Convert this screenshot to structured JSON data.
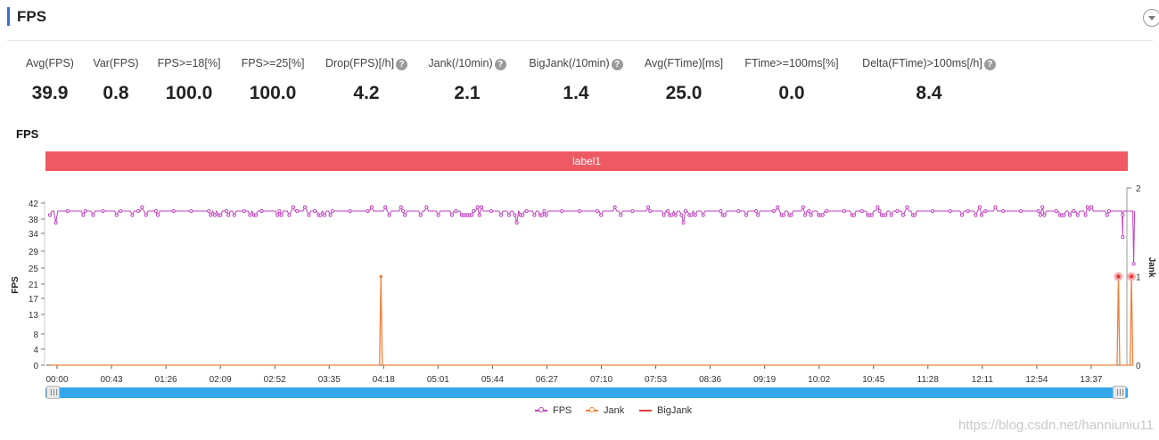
{
  "header": {
    "title": "FPS"
  },
  "metrics": [
    {
      "label": "Avg(FPS)",
      "value": "39.9",
      "help": false
    },
    {
      "label": "Var(FPS)",
      "value": "0.8",
      "help": false
    },
    {
      "label": "FPS>=18[%]",
      "value": "100.0",
      "help": false
    },
    {
      "label": "FPS>=25[%]",
      "value": "100.0",
      "help": false
    },
    {
      "label": "Drop(FPS)[/h]",
      "value": "4.2",
      "help": true
    },
    {
      "label": "Jank(/10min)",
      "value": "2.1",
      "help": true
    },
    {
      "label": "BigJank(/10min)",
      "value": "1.4",
      "help": true
    },
    {
      "label": "Avg(FTime)[ms]",
      "value": "25.0",
      "help": false
    },
    {
      "label": "FTime>=100ms[%]",
      "value": "0.0",
      "help": false
    },
    {
      "label": "Delta(FTime)>100ms[/h]",
      "value": "8.4",
      "help": true
    }
  ],
  "section": {
    "title": "FPS",
    "label_bar": "label1"
  },
  "chart_data": {
    "type": "line",
    "left_axis": {
      "label": "FPS",
      "ticks": [
        0,
        4,
        8,
        13,
        17,
        21,
        25,
        29,
        34,
        38,
        42
      ]
    },
    "right_axis": {
      "label": "Jank",
      "ticks": [
        0,
        1,
        2
      ],
      "ylim": [
        0,
        2
      ]
    },
    "x_ticks": [
      "00:00",
      "00:43",
      "01:26",
      "02:09",
      "02:52",
      "03:35",
      "04:18",
      "05:01",
      "05:44",
      "06:27",
      "07:10",
      "07:53",
      "08:36",
      "09:19",
      "10:02",
      "10:45",
      "11:28",
      "12:11",
      "12:54",
      "13:37"
    ],
    "series": [
      {
        "name": "FPS",
        "axis": "left",
        "color": "#bf3fbf",
        "typical_value": 40,
        "dips": [
          {
            "x_index": 19.58,
            "value": 33
          },
          {
            "x_index": 19.78,
            "value": 26
          }
        ]
      },
      {
        "name": "Jank",
        "axis": "right",
        "color": "#f0813a",
        "baseline": 0,
        "spikes": [
          {
            "x_index": 5.95,
            "value": 1
          },
          {
            "x_index": 19.5,
            "value": 1
          },
          {
            "x_index": 19.74,
            "value": 1
          }
        ]
      },
      {
        "name": "BigJank",
        "axis": "right",
        "color": "#e03a3a",
        "markers": [
          {
            "x_index": 19.5,
            "value": 1
          },
          {
            "x_index": 19.74,
            "value": 1
          }
        ]
      }
    ]
  },
  "slider": {
    "handle_left_label": "|||",
    "handle_right_label": "|||"
  },
  "legend": [
    {
      "name": "FPS",
      "color": "#bf3fbf"
    },
    {
      "name": "Jank",
      "color": "#f0813a"
    },
    {
      "name": "BigJank",
      "color": "#e03a3a"
    }
  ],
  "watermark": "https://blog.csdn.net/hanniuniu11"
}
